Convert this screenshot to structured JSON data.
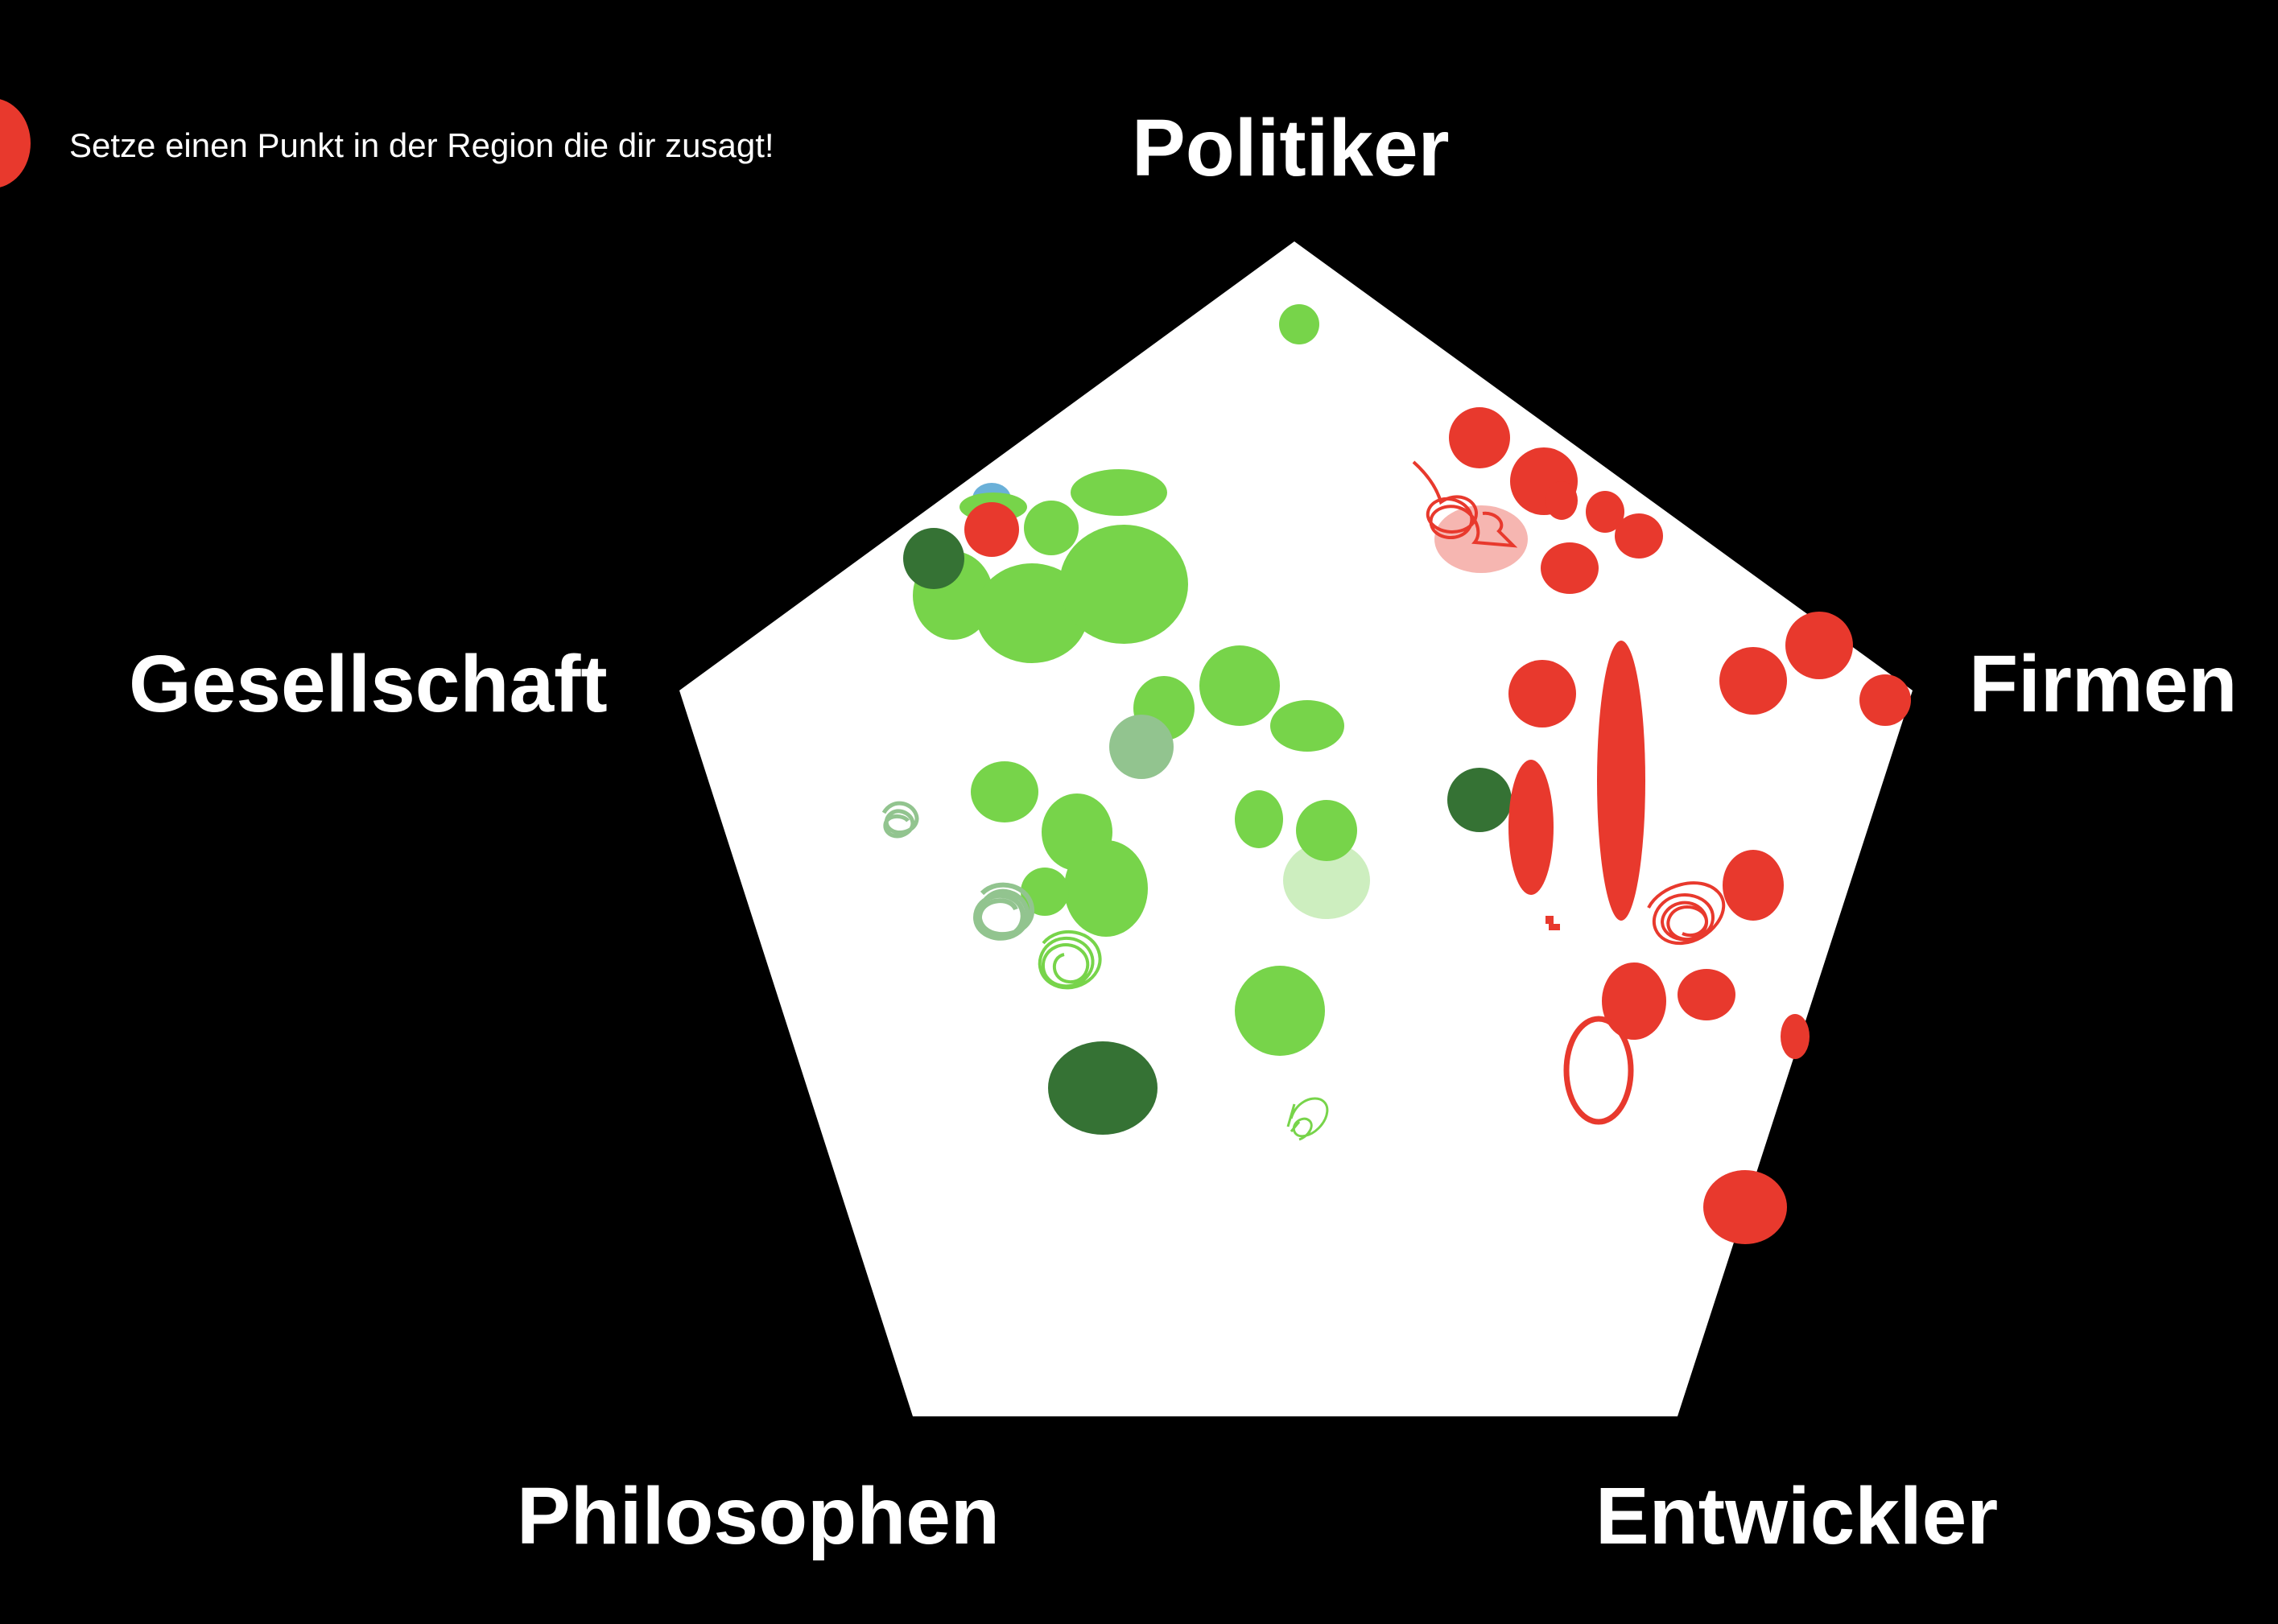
{
  "instruction": "Setze einen Punkt in der Region die dir zusagt!",
  "axes": {
    "top": "Politiker",
    "left": "Gesellschaft",
    "right": "Firmen",
    "bottom_left": "Philosophen",
    "bottom_right": "Entwickler"
  },
  "colors": {
    "background": "#000000",
    "pentagon": "#ffffff",
    "red": "#e8392d",
    "light_red": "#f6b6b1",
    "green": "#77d44a",
    "dark_green": "#357234",
    "muted_green": "#92c48f",
    "pale_green": "#cdeebf",
    "blue": "#6ab0d8"
  },
  "tools": {
    "current_pen_color": "#e8392d"
  }
}
